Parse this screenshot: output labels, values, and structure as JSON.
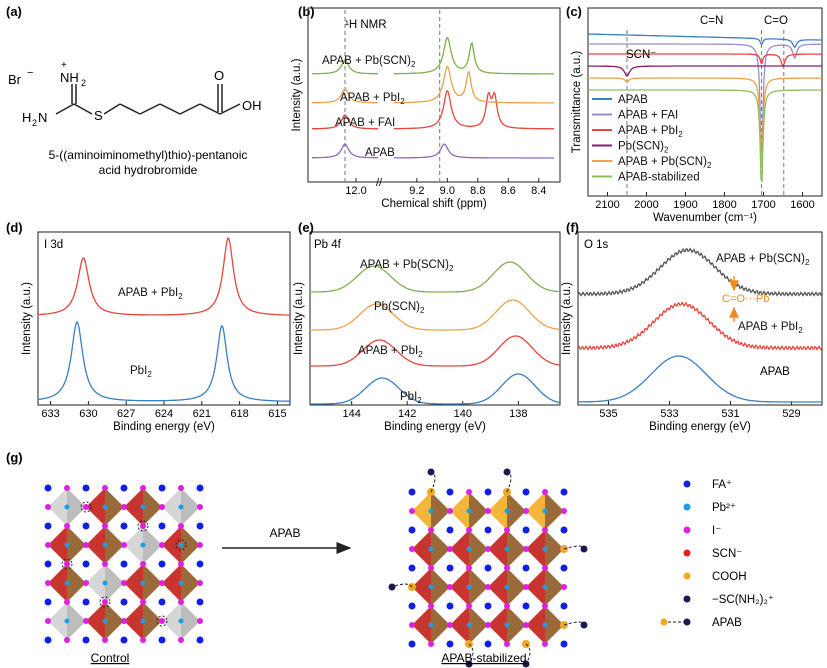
{
  "panel_labels": [
    "(a)",
    "(b)",
    "(c)",
    "(d)",
    "(e)",
    "(f)",
    "(g)"
  ],
  "panel_a": {
    "molecule_name_line1": "5-((aminoiminomethyl)thio)-pentanoic",
    "molecule_name_line2": "acid hydrobromide",
    "atoms": {
      "br": "Br",
      "nh2_top": "NH",
      "nh2_left": "H",
      "s": "S",
      "oh": "OH",
      "o": "O",
      "plus": "+",
      "minus": "−",
      "sub2": "2",
      "n_left": "N"
    }
  },
  "chart_data": [
    {
      "id": "b",
      "type": "line",
      "title": "¹H NMR",
      "xlabel": "Chemical shift (ppm)",
      "ylabel": "Intensity (a.u.)",
      "x_ticks": [
        "12.0",
        "9.2",
        "9.0",
        "8.8",
        "8.6",
        "8.4"
      ],
      "axis_break": "//",
      "series": [
        {
          "name": "APAB",
          "color": "#8c6bbf",
          "peaks": [
            12.05,
            9.02
          ]
        },
        {
          "name": "APAB + FAI",
          "color": "#e8453c",
          "peaks": [
            12.05,
            9.0,
            8.73,
            8.69
          ]
        },
        {
          "name": "APAB + PbI2",
          "color": "#f0a04b",
          "peaks": [
            12.05,
            9.0,
            8.86
          ]
        },
        {
          "name": "APAB + Pb(SCN)2",
          "color": "#7fb04e",
          "peaks": [
            12.05,
            9.0,
            8.84
          ]
        }
      ],
      "reference_lines": [
        12.05,
        9.05
      ]
    },
    {
      "id": "c",
      "type": "line",
      "xlabel": "Wavenumber (cm⁻¹)",
      "ylabel": "Transmittance (a.u.)",
      "xlim": [
        2150,
        1550
      ],
      "x_ticks": [
        "2100",
        "2000",
        "1900",
        "1800",
        "1700",
        "1600"
      ],
      "annotations": [
        "SCN⁻",
        "C=N",
        "C=O"
      ],
      "reference_lines": [
        2050,
        1705,
        1648
      ],
      "series": [
        {
          "name": "APAB",
          "color": "#3a7ec4"
        },
        {
          "name": "APAB + FAI",
          "color": "#9a8dc9"
        },
        {
          "name": "APAB + PbI2",
          "color": "#e8453c"
        },
        {
          "name": "Pb(SCN)2",
          "color": "#8a1a6a"
        },
        {
          "name": "APAB + Pb(SCN)2",
          "color": "#f0a04b"
        },
        {
          "name": "APAB-stabilized",
          "color": "#8dbf5e"
        }
      ]
    },
    {
      "id": "d",
      "type": "line",
      "title": "I 3d",
      "xlabel": "Binding energy (eV)",
      "ylabel": "Intensity (a.u.)",
      "xlim": [
        634,
        614
      ],
      "x_ticks": [
        "633",
        "630",
        "627",
        "624",
        "621",
        "618",
        "615"
      ],
      "series": [
        {
          "name": "APAB + PbI2",
          "color": "#e8453c",
          "peaks": [
            630.4,
            618.9
          ]
        },
        {
          "name": "PbI2",
          "color": "#3a7ec4",
          "peaks": [
            630.9,
            619.4
          ]
        }
      ]
    },
    {
      "id": "e",
      "type": "line",
      "title": "Pb 4f",
      "xlabel": "Binding energy (eV)",
      "ylabel": "Intensity (a.u.)",
      "xlim": [
        145.5,
        136.5
      ],
      "x_ticks": [
        "144",
        "142",
        "140",
        "138"
      ],
      "series": [
        {
          "name": "APAB + Pb(SCN)2",
          "color": "#7fb04e",
          "peaks": [
            143.2,
            138.3
          ]
        },
        {
          "name": "Pb(SCN)2",
          "color": "#f0a04b",
          "peaks": [
            143.1,
            138.2
          ]
        },
        {
          "name": "APAB + PbI2",
          "color": "#e8453c",
          "peaks": [
            143.0,
            138.1
          ]
        },
        {
          "name": "PbI2",
          "color": "#3a7ec4",
          "peaks": [
            142.9,
            138.0
          ]
        }
      ]
    },
    {
      "id": "f",
      "type": "line",
      "title": "O 1s",
      "xlabel": "Binding energy (eV)",
      "ylabel": "Intensity (a.u.)",
      "xlim": [
        536,
        528
      ],
      "x_ticks": [
        "535",
        "533",
        "531",
        "529"
      ],
      "annotations": [
        "C=O···Pb"
      ],
      "series": [
        {
          "name": "APAB + Pb(SCN)2",
          "color": "#555555",
          "peaks": [
            532.4
          ]
        },
        {
          "name": "APAB + PbI2",
          "color": "#e8453c",
          "peaks": [
            532.6
          ]
        },
        {
          "name": "APAB",
          "color": "#3a7ec4",
          "peaks": [
            532.7
          ]
        }
      ]
    }
  ],
  "panel_g": {
    "arrow_label": "APAB",
    "left_caption": "Control",
    "right_caption": "APAB-stabilized",
    "legend": [
      {
        "label": "FA⁺",
        "color": "#1020e0",
        "icon": "blue-dot-icon"
      },
      {
        "label": "Pb²⁺",
        "color": "#1aa0e0",
        "icon": "cyan-dot-icon"
      },
      {
        "label": "I⁻",
        "color": "#e020e0",
        "icon": "magenta-dot-icon"
      },
      {
        "label": "SCN⁻",
        "color": "#e02020",
        "icon": "red-dot-icon"
      },
      {
        "label": "COOH",
        "color": "#f0a820",
        "icon": "orange-dot-icon"
      },
      {
        "label": "−SC(NH₂)₂⁺",
        "color": "#1a1a50",
        "icon": "navy-dot-icon"
      },
      {
        "label": "APAB",
        "color": "#1a1a50",
        "icon": "apab-molecule-icon"
      }
    ]
  }
}
